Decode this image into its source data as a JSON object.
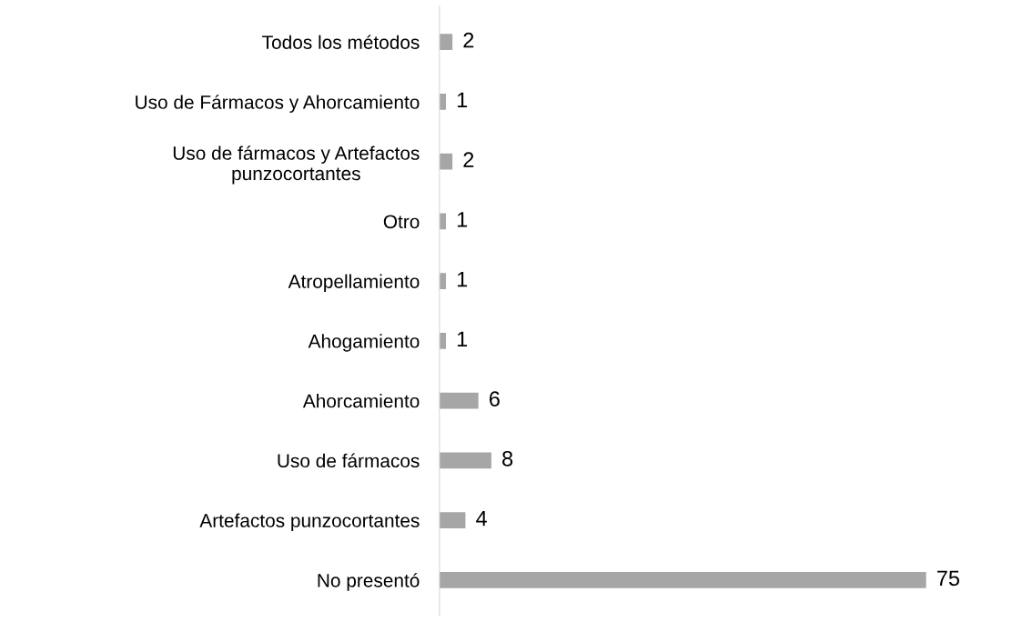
{
  "chart_data": {
    "type": "bar",
    "orientation": "horizontal",
    "categories": [
      "Todos los métodos",
      "Uso de Fármacos y Ahorcamiento",
      "Uso de fármacos y Artefactos\npunzocortantes",
      "Otro",
      "Atropellamiento",
      "Ahogamiento",
      "Ahorcamiento",
      "Uso de fármacos",
      "Artefactos punzocortantes",
      "No presentó"
    ],
    "values": [
      2,
      1,
      2,
      1,
      1,
      1,
      6,
      8,
      4,
      75
    ],
    "color": "#a6a6a6",
    "data_labels": true,
    "tick_labels": "y",
    "grid": false,
    "legend": false
  }
}
